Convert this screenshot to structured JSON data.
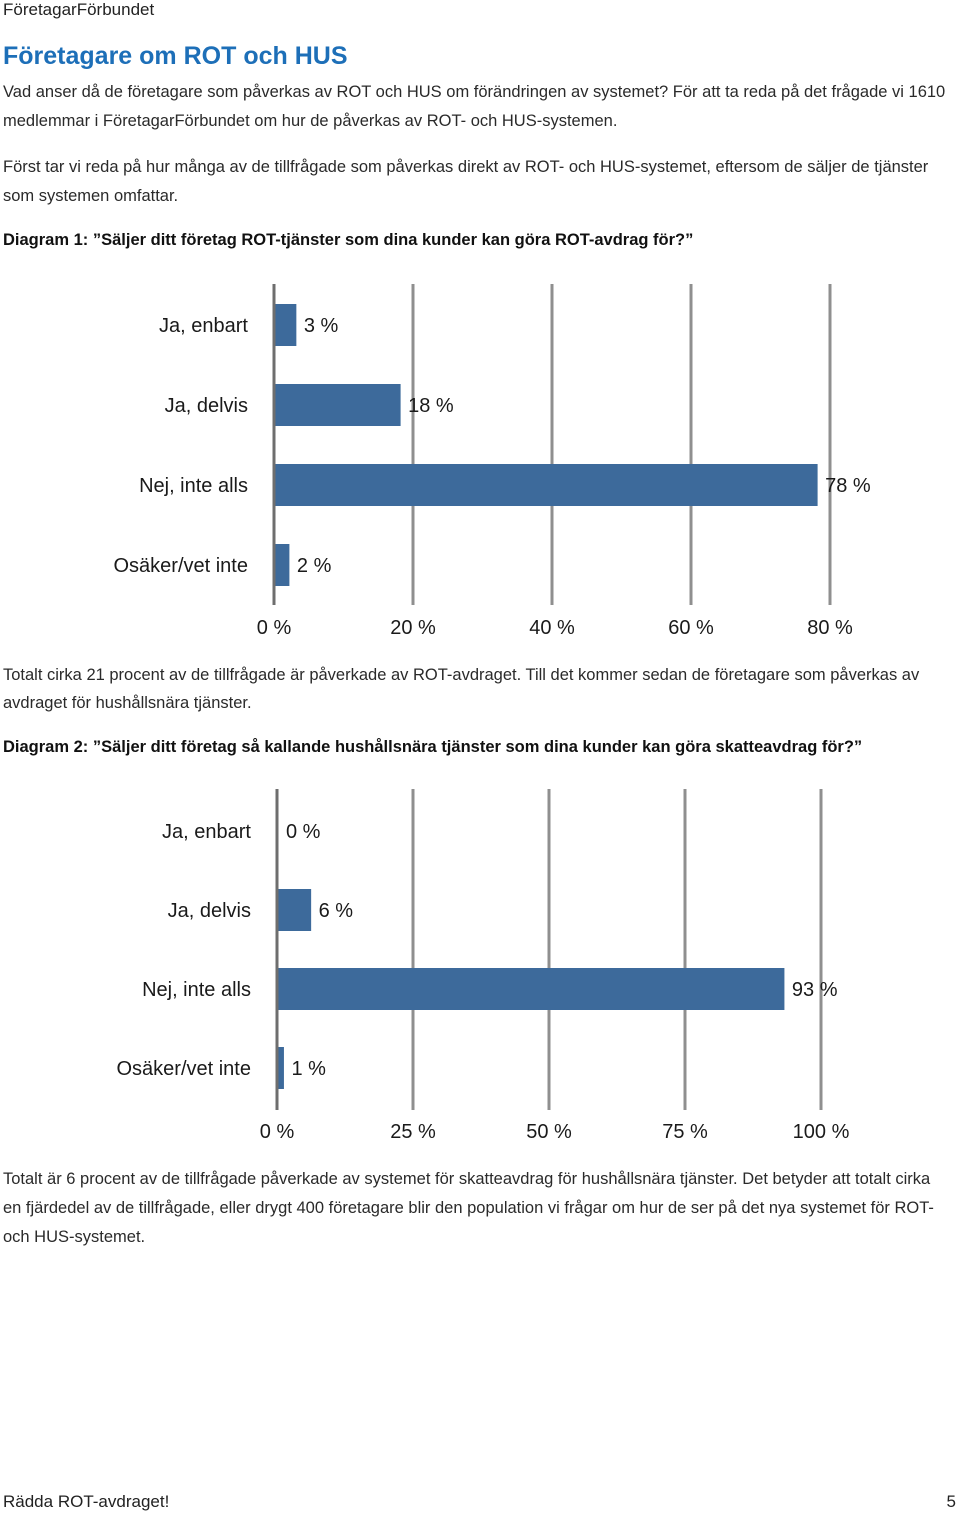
{
  "header": {
    "brand": "FöretagarFörbundet"
  },
  "title": "Företagare om ROT och HUS",
  "paragraphs": {
    "intro": "Vad anser då de företagare som påverkas av ROT och HUS om förändringen av systemet? För att ta reda på det frågade vi 1610 medlemmar i FöretagarFörbundet om hur de påverkas av ROT- och HUS-systemen.",
    "first": "Först tar vi reda på hur många av de tillfrågade som påverkas direkt av ROT- och HUS-systemet, eftersom de säljer de tjänster som systemen omfattar.",
    "after_diagram1": "Totalt cirka 21 procent av de tillfrågade är påverkade av ROT-avdraget. Till det kommer sedan de företagare som påverkas av avdraget för hushållsnära tjänster.",
    "after_diagram2": "Totalt är 6 procent av de tillfrågade påverkade av systemet för skatteavdrag för hushållsnära tjänster. Det betyder att totalt cirka en fjärdedel av de tillfrågade, eller drygt 400 företagare blir den population vi frågar om hur de ser på det nya systemet för ROT- och HUS-systemet."
  },
  "diagram_headings": {
    "d1": "Diagram 1: ”Säljer ditt företag ROT-tjänster som dina kunder kan göra ROT-avdrag för?”",
    "d2": "Diagram 2: ”Säljer ditt företag så kallande hushållsnära tjänster som dina kunder kan göra skatteavdrag för?”"
  },
  "bar_color": "#3d6a9b",
  "chart_data": [
    {
      "type": "bar",
      "orientation": "horizontal",
      "categories": [
        "Ja, enbart",
        "Ja, delvis",
        "Nej, inte alls",
        "Osäker/vet inte"
      ],
      "values": [
        3,
        18,
        78,
        2
      ],
      "value_labels": [
        "3 %",
        "18 %",
        "78 %",
        "2 %"
      ],
      "xlim": [
        0,
        80
      ],
      "xticks": [
        0,
        20,
        40,
        60,
        80
      ],
      "xtick_labels": [
        "0 %",
        "20 %",
        "40 %",
        "60 %",
        "80 %"
      ],
      "grid": true
    },
    {
      "type": "bar",
      "orientation": "horizontal",
      "categories": [
        "Ja, enbart",
        "Ja, delvis",
        "Nej, inte alls",
        "Osäker/vet inte"
      ],
      "values": [
        0,
        6,
        93,
        1
      ],
      "value_labels": [
        "0 %",
        "6 %",
        "93 %",
        "1 %"
      ],
      "xlim": [
        0,
        100
      ],
      "xticks": [
        0,
        25,
        50,
        75,
        100
      ],
      "xtick_labels": [
        "0 %",
        "25 %",
        "50 %",
        "75 %",
        "100 %"
      ],
      "grid": true
    }
  ],
  "footer": {
    "left": "Rädda ROT-avdraget!",
    "page_number": "5"
  }
}
